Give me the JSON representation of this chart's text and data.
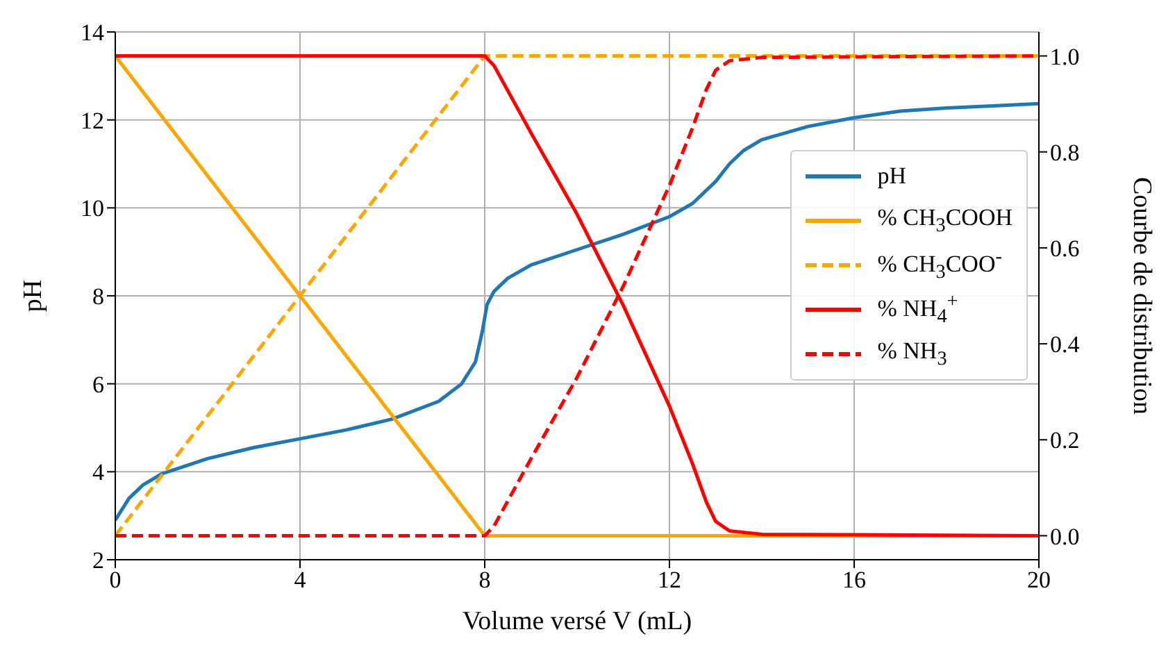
{
  "chart_data": {
    "type": "line",
    "xlabel": "Volume versé V (mL)",
    "ylabel": "pH",
    "y2label": "Courbe de distribution",
    "xlim": [
      0,
      20
    ],
    "xticks": [
      0,
      4,
      8,
      12,
      16,
      20
    ],
    "ylim": [
      2,
      14
    ],
    "yticks": [
      2,
      4,
      6,
      8,
      10,
      12,
      14
    ],
    "y2lim": [
      -0.05,
      1.05
    ],
    "y2ticks": [
      {
        "value": 0,
        "label": "0.0"
      },
      0.2,
      0.4,
      0.6,
      0.8,
      {
        "value": 1,
        "label": "1.0"
      }
    ],
    "grid": true,
    "legend": "right",
    "marker": "none",
    "series": [
      {
        "name": "pH",
        "color": "#1f77b4",
        "line_style": "solid",
        "x": [
          0,
          0.3,
          0.6,
          1,
          2,
          3,
          4,
          5,
          6,
          7,
          7.5,
          7.8,
          7.95,
          8.05,
          8.2,
          8.5,
          9,
          10,
          11,
          12,
          12.5,
          13,
          13.3,
          13.6,
          14,
          15,
          16,
          17,
          18,
          19,
          20
        ],
        "values": [
          2.9,
          3.4,
          3.7,
          3.95,
          4.3,
          4.55,
          4.75,
          4.95,
          5.2,
          5.6,
          6.0,
          6.5,
          7.2,
          7.8,
          8.1,
          8.4,
          8.7,
          9.05,
          9.4,
          9.8,
          10.1,
          10.6,
          11.0,
          11.3,
          11.55,
          11.85,
          12.05,
          12.2,
          12.27,
          12.32,
          12.37
        ]
      },
      {
        "name": "% CH$_{3}$COOH",
        "color": "#ffa500",
        "line_style": "solid",
        "axis": "y2",
        "x": [
          0,
          8,
          20
        ],
        "values": [
          1,
          0,
          0
        ]
      },
      {
        "name": "% CH$_{3}$COO$^{-}$",
        "color": "#ffa500",
        "line_style": "dashed",
        "axis": "y2",
        "x": [
          0,
          8,
          20
        ],
        "values": [
          0,
          1,
          1
        ]
      },
      {
        "name": "% NH$_{4}$$^{+}$",
        "color": "#ff0000",
        "line_style": "solid",
        "axis": "y2",
        "x": [
          0,
          8,
          8.2,
          9,
          10,
          11,
          12,
          12.5,
          12.8,
          13,
          13.3,
          14,
          20
        ],
        "values": [
          1,
          1,
          0.98,
          0.84,
          0.67,
          0.48,
          0.27,
          0.15,
          0.07,
          0.03,
          0.01,
          0.003,
          0
        ]
      },
      {
        "name": "% NH$_{3}$",
        "color": "#ff0000",
        "line_style": "dashed",
        "axis": "y2",
        "x": [
          0,
          8,
          8.2,
          9,
          10,
          11,
          12,
          12.5,
          12.8,
          13,
          13.3,
          14,
          20
        ],
        "values": [
          0,
          0,
          0.02,
          0.16,
          0.33,
          0.52,
          0.73,
          0.85,
          0.93,
          0.97,
          0.99,
          0.997,
          1
        ]
      }
    ]
  }
}
